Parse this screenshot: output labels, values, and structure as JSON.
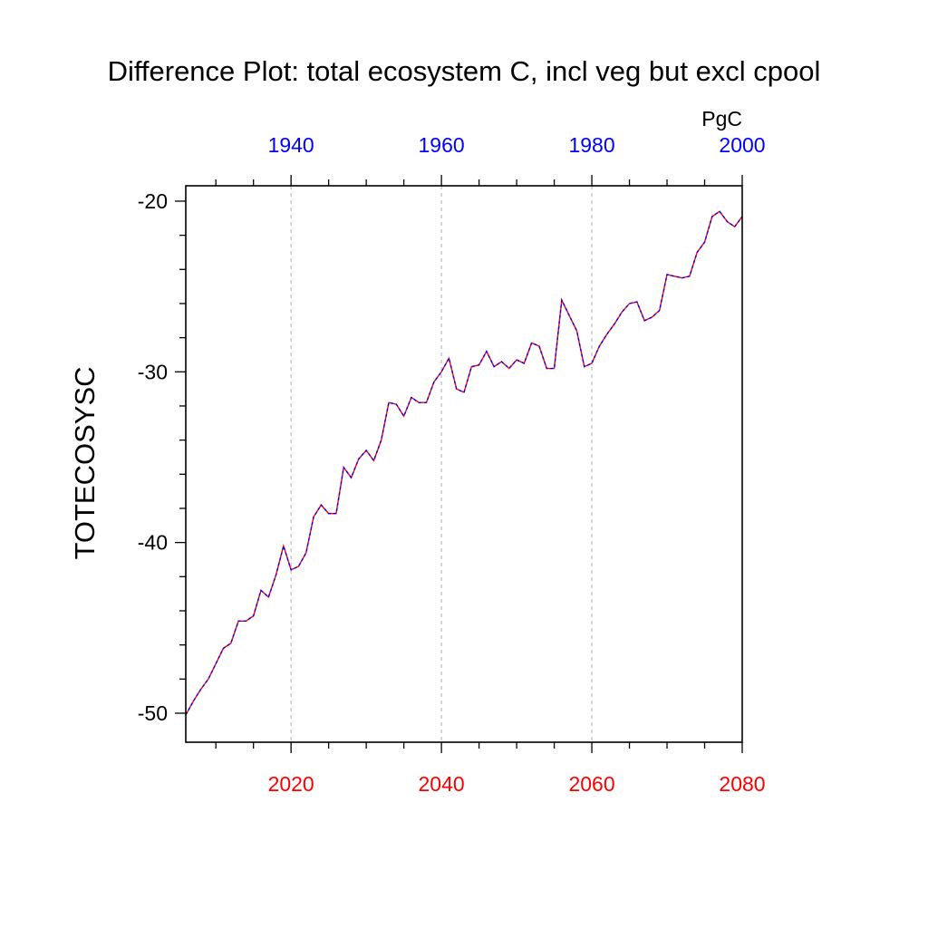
{
  "chart_data": {
    "type": "line",
    "title": "Difference Plot: total ecosystem C, incl veg but excl cpool",
    "units": "PgC",
    "ylabel": "TOTECOSYSC",
    "ylim": [
      -51.7,
      -19.1
    ],
    "yticks": [
      -50,
      -40,
      -30,
      -20
    ],
    "ytick_labels": [
      "-50",
      "-40",
      "-30",
      "-20"
    ],
    "bottom_axis": {
      "xlim": [
        2006,
        2080
      ],
      "ticks": [
        2020,
        2040,
        2060,
        2080
      ],
      "tick_labels": [
        "2020",
        "2040",
        "2060",
        "2080"
      ],
      "color": "#ff0000"
    },
    "top_axis": {
      "xlim": [
        1926,
        2000
      ],
      "ticks": [
        1940,
        1960,
        1980,
        2000
      ],
      "tick_labels": [
        "1940",
        "1960",
        "1980",
        "2000"
      ],
      "color": "#0000ff"
    },
    "grid": "vertical dashed at major bottom ticks",
    "series": [
      {
        "color_primary": "#ff0000",
        "color_secondary": "#0000ff",
        "x": [
          2006,
          2007,
          2008,
          2009,
          2010,
          2011,
          2012,
          2013,
          2014,
          2015,
          2016,
          2017,
          2018,
          2019,
          2020,
          2021,
          2022,
          2023,
          2024,
          2025,
          2026,
          2027,
          2028,
          2029,
          2030,
          2031,
          2032,
          2033,
          2034,
          2035,
          2036,
          2037,
          2038,
          2039,
          2040,
          2041,
          2042,
          2043,
          2044,
          2045,
          2046,
          2047,
          2048,
          2049,
          2050,
          2051,
          2052,
          2053,
          2054,
          2055,
          2056,
          2057,
          2058,
          2059,
          2060,
          2061,
          2062,
          2063,
          2064,
          2065,
          2066,
          2067,
          2068,
          2069,
          2070,
          2071,
          2072,
          2073,
          2074,
          2075,
          2076,
          2077,
          2078,
          2079,
          2080
        ],
        "values": [
          -50.1,
          -49.3,
          -48.6,
          -48.0,
          -47.1,
          -46.2,
          -45.9,
          -44.6,
          -44.6,
          -44.3,
          -42.8,
          -43.2,
          -41.9,
          -40.2,
          -41.6,
          -41.4,
          -40.6,
          -38.5,
          -37.8,
          -38.3,
          -38.3,
          -35.6,
          -36.2,
          -35.1,
          -34.6,
          -35.2,
          -34.0,
          -31.8,
          -31.9,
          -32.6,
          -31.5,
          -31.8,
          -31.8,
          -30.6,
          -30.0,
          -29.2,
          -31.0,
          -31.2,
          -29.7,
          -29.6,
          -28.8,
          -29.7,
          -29.4,
          -29.8,
          -29.3,
          -29.5,
          -28.3,
          -28.5,
          -29.8,
          -29.8,
          -25.8,
          -26.7,
          -27.6,
          -29.7,
          -29.5,
          -28.5,
          -27.8,
          -27.2,
          -26.5,
          -26.0,
          -25.9,
          -27.0,
          -26.8,
          -26.4,
          -24.3,
          -24.4,
          -24.5,
          -24.4,
          -23.0,
          -22.4,
          -20.9,
          -20.6,
          -21.2,
          -21.5,
          -20.9
        ]
      }
    ]
  }
}
